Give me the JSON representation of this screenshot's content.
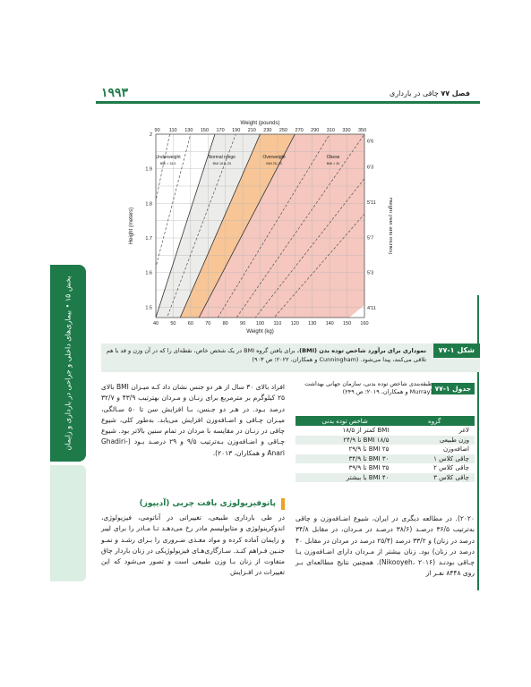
{
  "header": {
    "page_number": "۱۹۹۳",
    "chapter_label": "فصل",
    "chapter_number": "۷۷",
    "chapter_title": "چاقی در بارداری"
  },
  "side_tab": {
    "text": "بخش ۱۵ • بیماری‌های داخلی و جراحی در بارداری و زایمان"
  },
  "colors": {
    "accent": "#1f7a4a",
    "underweight": "#ffffff",
    "normal": "#ececea",
    "overweight": "#f7c596",
    "obese": "#f5c7be"
  },
  "chart_data": {
    "type": "area",
    "top_axis_label": "Weight (pounds)",
    "top_ticks": [
      "90",
      "110",
      "130",
      "150",
      "170",
      "190",
      "210",
      "230",
      "250",
      "270",
      "290",
      "310",
      "330",
      "350"
    ],
    "bottom_axis_label": "Weight (kg)",
    "bottom_ticks": [
      "40",
      "50",
      "60",
      "70",
      "80",
      "90",
      "100",
      "110",
      "120",
      "130",
      "140",
      "150",
      "160"
    ],
    "xlim": [
      40,
      160
    ],
    "left_axis_label": "Height (meters)",
    "left_ticks": [
      "1.5",
      "1.6",
      "1.7",
      "1.8",
      "1.9",
      "2"
    ],
    "ylim": [
      1.47,
      2.0
    ],
    "right_axis_label": "Height (feet and inches)",
    "right_ticks": [
      "4'11",
      "5'3",
      "5'7",
      "5'11",
      "6'3",
      "6'6"
    ],
    "regions": [
      {
        "name": "Underweight",
        "range": "BMI < 18.5",
        "bmi_min": 0,
        "bmi_max": 18.5
      },
      {
        "name": "Normal range",
        "range": "BMI 18.5–25",
        "bmi_min": 18.5,
        "bmi_max": 25
      },
      {
        "name": "Overweight",
        "range": "BMI 25–30",
        "bmi_min": 25,
        "bmi_max": 30
      },
      {
        "name": "Obese",
        "range": "BMI > 30",
        "bmi_min": 30,
        "bmi_max": 70
      }
    ],
    "solid_bmi_lines": [
      18.5,
      25,
      30
    ],
    "dashed_bmi_lines": [
      12,
      15,
      21.5,
      35,
      40,
      45,
      50
    ]
  },
  "figure": {
    "tag": "شکل ۱-۷۷",
    "title": "نموداری برای برآورد شاخص توده بدن (BMI).",
    "text": "برای یافتن گروه BMI در یک شخص خاص، نقطه‌ای را که در آن وزن و قد با هم تلاقی می‌کنند، پیدا می‌شود. (Cunningham و همکاران، ۲۰۲۲؛ ص ۹۰۳)"
  },
  "table": {
    "tag": "جدول ۱-۷۷",
    "caption": "طبقه‌بندی شاخص توده بدنی، سازمان جهانی بهداشت (Murray و همکاران، ۲۰۱۹؛ ص ۲۴۹)",
    "headers": [
      "شاخص توده بدنی",
      "گروه"
    ],
    "rows": [
      [
        "BMI کمتر از ۱۸/۵",
        "لاغر"
      ],
      [
        "BMI ۱۸/۵ تا ۲۴/۹",
        "وزن طبیعی"
      ],
      [
        "BMI ۲۵ تا ۲۹/۹",
        "اضافه‌وزن"
      ],
      [
        "BMI ۳۰ تا ۳۴/۹",
        "چاقی کلاس ۱"
      ],
      [
        "BMI ۳۵ تا ۳۹/۹",
        "چاقی کلاس ۲"
      ],
      [
        "BMI ۴۰ یا بیشتر",
        "چاقی کلاس ۳"
      ]
    ]
  },
  "body": {
    "p1": "افراد بالای ۳۰ سال از هر دو جنس نشان داد کـه میـزان BMI بالای ۲۵ کیلوگرم بر مترمربع برای زنـان و مـردان بهترتیب ۴۳/۹ و ۳۲/۷ درصد بـود. در هـر دو جـنس، بـا افزایش سن تا ۵۰ سـالگی، میـزان چـاقی و اضـافه‌وزن افزایش می‌یابد. به‌طور کلی، شیوع چاقی در زنـان در مقایسه با مردان در تمام سنین بالاتر بود. شیوع چـاقی و اضـافه‌وزن بـه‌ترتیب ۹/۵ و ۲۹ درصـد بـود (‎Ghadiri-Anari و همکاران، ۲۰۱۳).",
    "section_heading": "پاتوفیزیولوژی بافت چربی (آدیپوز)",
    "p3": "در طی بارداری طبیعی، تغییراتی در آناتومی، فیزیولوژی، اندوکرینولوژی و متابولیسم مادر رخ می‌دهـد تـا مـادر را برای لیبر و زایمان آماده کرده و مواد مغـذی ضـروری را بـرای رشـد و نمـو جنـین فـراهم کنـد. سـازگاری‌هـای فیزیولوژیکی در زنان باردار چاق متفاوت از زنان بـا وزن طبیعی است و تصور می‌شود که این تغییرات در افـزایش",
    "p2": "۲۰۲۰). در مطالعه دیگری در ایران، شیوع اضـافه‌وزن و چاقی به‌ترتیب ۳۶/۵ درصـد (۳۸/۶ درصـد در مـردان، در مقابل ۳۴/۸ درصد در زنان) و ۳۳/۲ درصد (۲۵/۴ درصد در مردان در مقابل ۴۰ درصد در زنان) بود. زنان بیشتر از مـردان دارای اضـافه‌وزن یـا چـاقی بودنـد (Nikooyeh، ۲۰۱۶). همچنین نتایج مطالعه‌ای بـر روی ۸۴۴۸ نفـر از"
  }
}
